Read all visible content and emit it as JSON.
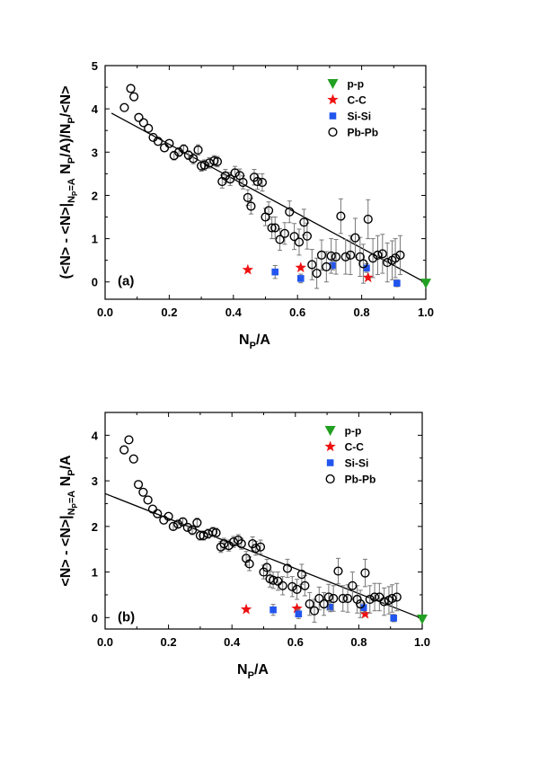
{
  "chart_data": [
    {
      "id": "a",
      "type": "scatter",
      "panel_label": "(a)",
      "xlabel_main": "N",
      "xlabel_sub": "P",
      "xlabel_tail": "/A",
      "ylabel_parts": [
        {
          "t": "(<N> - <N>|",
          "s": "n"
        },
        {
          "t": "N",
          "s": "sub"
        },
        {
          "t": "P",
          "s": "subsub"
        },
        {
          "t": "=A",
          "s": "sub"
        },
        {
          "t": " N",
          "s": "n"
        },
        {
          "t": "P",
          "s": "sub"
        },
        {
          "t": "/A)/N",
          "s": "n"
        },
        {
          "t": "P",
          "s": "sub"
        },
        {
          "t": "/<N>",
          "s": "n"
        }
      ],
      "xlim": [
        0.0,
        1.0
      ],
      "ylim": [
        -0.4,
        5.0
      ],
      "xticks": [
        0.0,
        0.2,
        0.4,
        0.6,
        0.8,
        1.0
      ],
      "xtick_labels": [
        "0.0",
        "0.2",
        "0.4",
        "0.6",
        "0.8",
        "1.0"
      ],
      "yticks": [
        0,
        1,
        2,
        3,
        4,
        5
      ],
      "ytick_labels": [
        "0",
        "1",
        "2",
        "3",
        "4",
        "5"
      ],
      "legend": {
        "position": "top-right",
        "entries": [
          "p-p",
          "C-C",
          "Si-Si",
          "Pb-Pb"
        ]
      },
      "fit_line": {
        "x": [
          0.02,
          1.0
        ],
        "y": [
          3.9,
          -0.02
        ]
      },
      "series": [
        {
          "name": "p-p",
          "marker": "triangle-down",
          "color": "#22a022",
          "x": [
            1.0
          ],
          "y": [
            -0.03
          ],
          "err": [
            0
          ]
        },
        {
          "name": "C-C",
          "marker": "star",
          "color": "#ee1111",
          "x": [
            0.445,
            0.61,
            0.82
          ],
          "y": [
            0.28,
            0.33,
            0.1
          ],
          "err": [
            0,
            0,
            0
          ]
        },
        {
          "name": "Si-Si",
          "marker": "square",
          "color": "#2255ee",
          "x": [
            0.53,
            0.61,
            0.71,
            0.815,
            0.91
          ],
          "y": [
            0.23,
            0.08,
            0.38,
            0.32,
            -0.03
          ],
          "err": [
            0.15,
            0.1,
            0.1,
            0.1,
            0.08
          ]
        },
        {
          "name": "Pb-Pb",
          "marker": "circle-open",
          "color": "#000000",
          "x": [
            0.06,
            0.08,
            0.09,
            0.105,
            0.12,
            0.135,
            0.15,
            0.165,
            0.185,
            0.2,
            0.215,
            0.23,
            0.245,
            0.26,
            0.275,
            0.29,
            0.3,
            0.31,
            0.325,
            0.34,
            0.35,
            0.365,
            0.375,
            0.39,
            0.405,
            0.42,
            0.43,
            0.445,
            0.455,
            0.465,
            0.475,
            0.49,
            0.5,
            0.51,
            0.52,
            0.53,
            0.545,
            0.56,
            0.575,
            0.59,
            0.605,
            0.62,
            0.63,
            0.645,
            0.66,
            0.675,
            0.69,
            0.705,
            0.72,
            0.735,
            0.75,
            0.765,
            0.78,
            0.795,
            0.805,
            0.82,
            0.835,
            0.85,
            0.865,
            0.88,
            0.895,
            0.905,
            0.92
          ],
          "y": [
            4.03,
            4.47,
            4.28,
            3.8,
            3.68,
            3.55,
            3.34,
            3.25,
            3.1,
            3.2,
            2.92,
            3.0,
            3.07,
            2.93,
            2.85,
            3.05,
            2.68,
            2.7,
            2.75,
            2.8,
            2.78,
            2.32,
            2.45,
            2.38,
            2.52,
            2.46,
            2.3,
            1.95,
            1.75,
            2.42,
            2.32,
            2.3,
            1.5,
            1.65,
            1.25,
            1.25,
            0.98,
            1.12,
            1.62,
            1.05,
            0.92,
            1.38,
            1.06,
            0.4,
            0.2,
            0.62,
            0.35,
            0.6,
            0.58,
            1.52,
            0.58,
            0.62,
            1.02,
            0.58,
            0.42,
            1.45,
            0.55,
            0.62,
            0.65,
            0.45,
            0.5,
            0.55,
            0.62
          ],
          "err": [
            0,
            0,
            0,
            0,
            0,
            0,
            0,
            0,
            0,
            0,
            0.1,
            0.1,
            0.1,
            0.1,
            0.12,
            0.12,
            0.12,
            0.12,
            0.12,
            0.12,
            0.12,
            0.15,
            0.15,
            0.15,
            0.15,
            0.15,
            0.15,
            0.18,
            0.18,
            0.18,
            0.18,
            0.2,
            0.2,
            0.2,
            0.25,
            0.25,
            0.25,
            0.25,
            0.25,
            0.3,
            0.3,
            0.3,
            0.3,
            0.35,
            0.35,
            0.35,
            0.35,
            0.4,
            0.4,
            0.4,
            0.4,
            0.45,
            0.45,
            0.45,
            0.45,
            0.45,
            0.45,
            0.45,
            0.45,
            0.45,
            0.45,
            0.45,
            0.45
          ]
        }
      ]
    },
    {
      "id": "b",
      "type": "scatter",
      "panel_label": "(b)",
      "xlabel_main": "N",
      "xlabel_sub": "P",
      "xlabel_tail": "/A",
      "ylabel_parts": [
        {
          "t": "<N> - <N>|",
          "s": "n"
        },
        {
          "t": "N",
          "s": "sub"
        },
        {
          "t": "P",
          "s": "subsub"
        },
        {
          "t": "=A",
          "s": "sub"
        },
        {
          "t": " N",
          "s": "n"
        },
        {
          "t": "P",
          "s": "sub"
        },
        {
          "t": "/A",
          "s": "n"
        }
      ],
      "xlim": [
        0.0,
        1.0
      ],
      "ylim": [
        -0.25,
        4.5
      ],
      "xticks": [
        0.0,
        0.2,
        0.4,
        0.6,
        0.8,
        1.0
      ],
      "xtick_labels": [
        "0.0",
        "0.2",
        "0.4",
        "0.6",
        "0.8",
        "1.0"
      ],
      "yticks": [
        0,
        1,
        2,
        3,
        4
      ],
      "ytick_labels": [
        "0",
        "1",
        "2",
        "3",
        "4"
      ],
      "legend": {
        "position": "top-right",
        "entries": [
          "p-p",
          "C-C",
          "Si-Si",
          "Pb-Pb"
        ]
      },
      "fit_line": {
        "x": [
          0.0,
          1.0
        ],
        "y": [
          2.72,
          -0.02
        ]
      },
      "series": [
        {
          "name": "p-p",
          "marker": "triangle-down",
          "color": "#22a022",
          "x": [
            1.0
          ],
          "y": [
            -0.03
          ],
          "err": [
            0
          ]
        },
        {
          "name": "C-C",
          "marker": "star",
          "color": "#ee1111",
          "x": [
            0.445,
            0.605,
            0.82
          ],
          "y": [
            0.18,
            0.2,
            0.08
          ],
          "err": [
            0,
            0,
            0
          ]
        },
        {
          "name": "Si-Si",
          "marker": "square",
          "color": "#2255ee",
          "x": [
            0.53,
            0.61,
            0.71,
            0.815,
            0.91
          ],
          "y": [
            0.17,
            0.08,
            0.23,
            0.22,
            -0.01
          ],
          "err": [
            0.12,
            0.1,
            0.1,
            0.1,
            0.08
          ]
        },
        {
          "name": "Pb-Pb",
          "marker": "circle-open",
          "color": "#000000",
          "x": [
            0.06,
            0.075,
            0.09,
            0.105,
            0.12,
            0.135,
            0.15,
            0.165,
            0.185,
            0.2,
            0.215,
            0.23,
            0.245,
            0.26,
            0.275,
            0.29,
            0.3,
            0.31,
            0.325,
            0.34,
            0.35,
            0.365,
            0.375,
            0.39,
            0.405,
            0.42,
            0.43,
            0.445,
            0.455,
            0.465,
            0.475,
            0.49,
            0.5,
            0.51,
            0.52,
            0.53,
            0.545,
            0.56,
            0.575,
            0.59,
            0.605,
            0.62,
            0.63,
            0.645,
            0.66,
            0.675,
            0.69,
            0.705,
            0.72,
            0.735,
            0.75,
            0.765,
            0.78,
            0.795,
            0.805,
            0.82,
            0.835,
            0.85,
            0.865,
            0.88,
            0.895,
            0.905,
            0.92
          ],
          "y": [
            3.68,
            3.9,
            3.48,
            2.92,
            2.75,
            2.58,
            2.38,
            2.28,
            2.14,
            2.22,
            2.0,
            2.05,
            2.1,
            1.98,
            1.92,
            2.08,
            1.8,
            1.8,
            1.84,
            1.88,
            1.86,
            1.55,
            1.62,
            1.58,
            1.66,
            1.7,
            1.62,
            1.3,
            1.18,
            1.62,
            1.52,
            1.55,
            1.0,
            1.1,
            0.85,
            0.82,
            0.8,
            0.7,
            1.08,
            0.68,
            0.62,
            0.95,
            0.7,
            0.3,
            0.15,
            0.42,
            0.3,
            0.45,
            0.42,
            1.02,
            0.42,
            0.42,
            0.7,
            0.4,
            0.3,
            0.98,
            0.4,
            0.45,
            0.45,
            0.35,
            0.38,
            0.42,
            0.45
          ],
          "err": [
            0,
            0,
            0,
            0,
            0,
            0,
            0,
            0,
            0,
            0,
            0.08,
            0.08,
            0.08,
            0.08,
            0.1,
            0.1,
            0.1,
            0.1,
            0.1,
            0.1,
            0.1,
            0.12,
            0.12,
            0.12,
            0.12,
            0.12,
            0.12,
            0.15,
            0.15,
            0.15,
            0.15,
            0.15,
            0.15,
            0.18,
            0.18,
            0.18,
            0.2,
            0.2,
            0.2,
            0.22,
            0.22,
            0.22,
            0.22,
            0.25,
            0.25,
            0.25,
            0.25,
            0.28,
            0.28,
            0.28,
            0.28,
            0.3,
            0.3,
            0.3,
            0.3,
            0.3,
            0.3,
            0.3,
            0.3,
            0.3,
            0.3,
            0.3,
            0.3
          ]
        }
      ]
    }
  ]
}
